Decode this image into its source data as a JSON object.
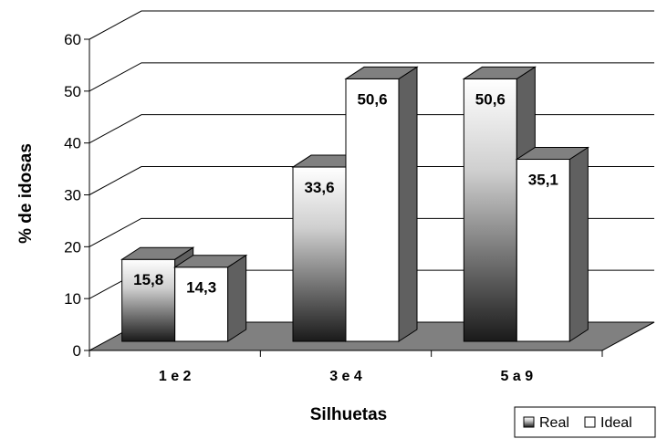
{
  "chart_data": {
    "type": "bar",
    "subtype": "3d-clustered-column",
    "categories": [
      "1 e 2",
      "3 e 4",
      "5 a 9"
    ],
    "series": [
      {
        "name": "Real",
        "values": [
          15.8,
          33.6,
          50.6
        ],
        "labels": [
          "15,8",
          "33,6",
          "50,6"
        ]
      },
      {
        "name": "Ideal",
        "values": [
          14.3,
          50.6,
          35.1
        ],
        "labels": [
          "14,3",
          "50,6",
          "35,1"
        ]
      }
    ],
    "title": "",
    "xlabel": "Silhuetas",
    "ylabel": "% de idosas",
    "ylim": [
      0,
      60
    ],
    "yticks": [
      "0",
      "10",
      "20",
      "30",
      "40",
      "50",
      "60"
    ],
    "grid": true,
    "legend": "bottom-right",
    "colors": {
      "floor": "#808080",
      "side": "#606060",
      "top": "#808080",
      "gridline": "#000000"
    }
  }
}
